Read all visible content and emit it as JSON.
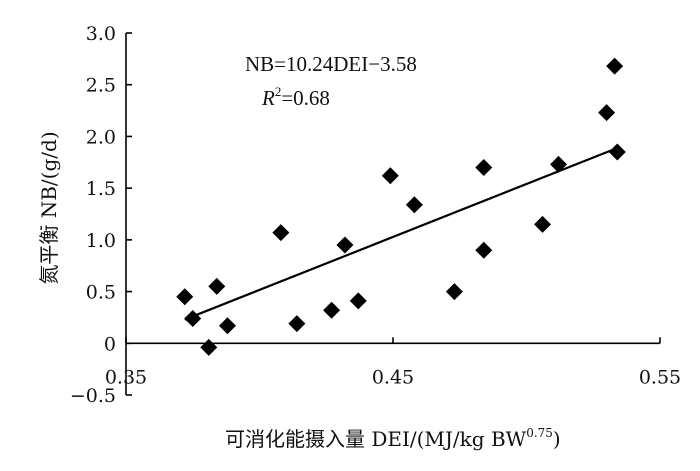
{
  "chart_data": {
    "type": "scatter",
    "xlabel": "可消化能摄入量 DEI/(MJ/kg BW",
    "xlabel_superscript": "0.75",
    "xlabel_suffix": ")",
    "ylabel": "氮平衡 NB/(g/d)",
    "xlim": [
      0.35,
      0.55
    ],
    "ylim": [
      -0.5,
      3.0
    ],
    "x_ticks": [
      0.35,
      0.45,
      0.55
    ],
    "x_tick_labels": [
      "0.35",
      "0.45",
      "0.55"
    ],
    "y_ticks": [
      -0.5,
      0,
      0.5,
      1.0,
      1.5,
      2.0,
      2.5,
      3.0
    ],
    "y_tick_labels": [
      "−0.5",
      "0",
      "0.5",
      "1.0",
      "1.5",
      "2.0",
      "2.5",
      "3.0"
    ],
    "grid": false,
    "marker": "diamond",
    "marker_color": "#000000",
    "points": [
      {
        "x": 0.372,
        "y": 0.45
      },
      {
        "x": 0.375,
        "y": 0.24
      },
      {
        "x": 0.381,
        "y": -0.04
      },
      {
        "x": 0.384,
        "y": 0.55
      },
      {
        "x": 0.388,
        "y": 0.17
      },
      {
        "x": 0.408,
        "y": 1.07
      },
      {
        "x": 0.414,
        "y": 0.19
      },
      {
        "x": 0.427,
        "y": 0.32
      },
      {
        "x": 0.432,
        "y": 0.95
      },
      {
        "x": 0.437,
        "y": 0.41
      },
      {
        "x": 0.449,
        "y": 1.62
      },
      {
        "x": 0.458,
        "y": 1.34
      },
      {
        "x": 0.473,
        "y": 0.5
      },
      {
        "x": 0.484,
        "y": 0.9
      },
      {
        "x": 0.484,
        "y": 1.7
      },
      {
        "x": 0.506,
        "y": 1.15
      },
      {
        "x": 0.512,
        "y": 1.73
      },
      {
        "x": 0.53,
        "y": 2.23
      },
      {
        "x": 0.533,
        "y": 2.68
      },
      {
        "x": 0.534,
        "y": 1.85
      }
    ],
    "trendline": {
      "slope": 10.24,
      "intercept": -3.58,
      "x_range": [
        0.372,
        0.534
      ]
    },
    "annotation": {
      "equation": "NB=10.24DEI−3.58",
      "r2_symbol": "R",
      "r2_superscript": "2",
      "r2_value": "=0.68"
    }
  }
}
